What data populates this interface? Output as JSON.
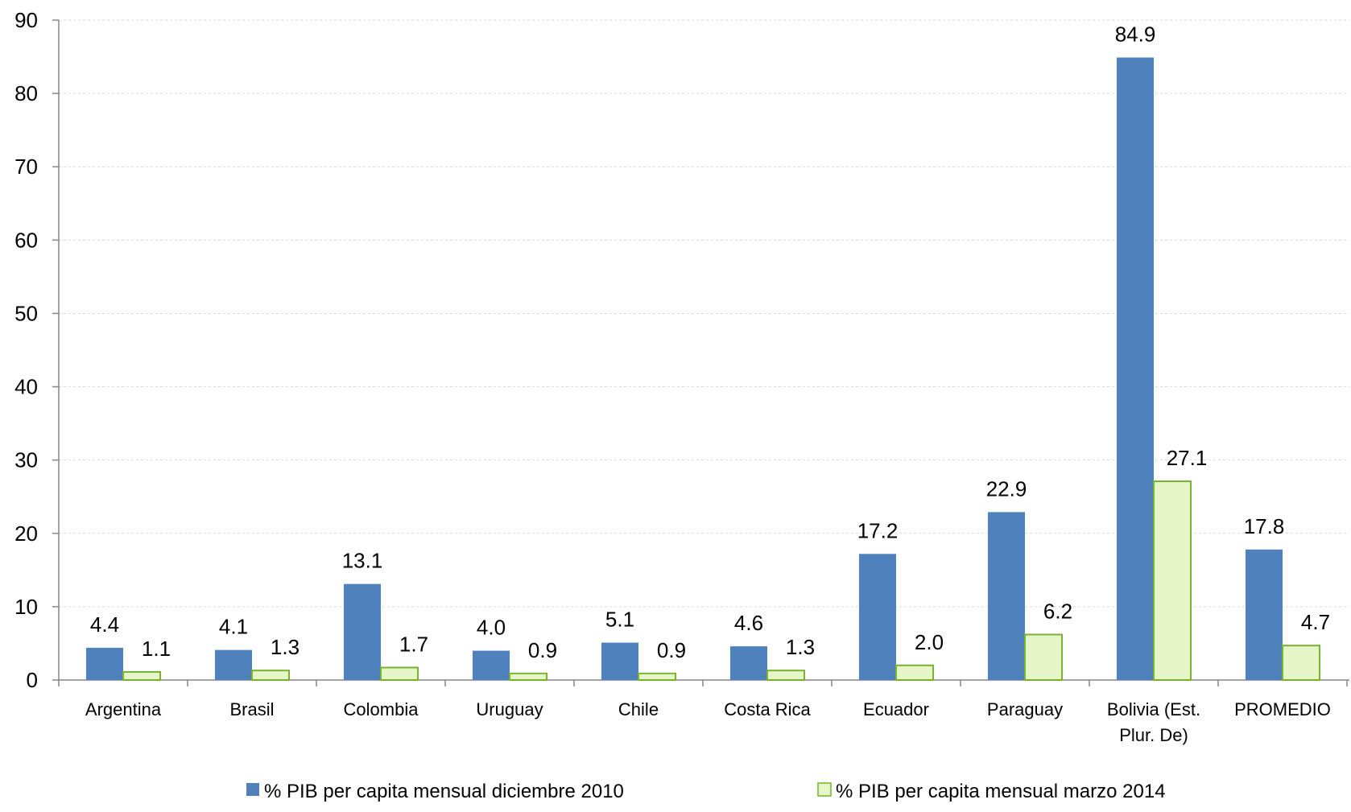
{
  "chart_data": {
    "type": "bar",
    "categories": [
      "Argentina",
      "Brasil",
      "Colombia",
      "Uruguay",
      "Chile",
      "Costa Rica",
      "Ecuador",
      "Paraguay",
      "Bolivia (Est. Plur. De)",
      "PROMEDIO"
    ],
    "category_lines": [
      [
        "Argentina"
      ],
      [
        "Brasil"
      ],
      [
        "Colombia"
      ],
      [
        "Uruguay"
      ],
      [
        "Chile"
      ],
      [
        "Costa Rica"
      ],
      [
        "Ecuador"
      ],
      [
        "Paraguay"
      ],
      [
        "Bolivia (Est.",
        "Plur. De)"
      ],
      [
        "PROMEDIO"
      ]
    ],
    "series": [
      {
        "name": "% PIB per capita mensual diciembre 2010",
        "values": [
          4.4,
          4.1,
          13.1,
          4.0,
          5.1,
          4.6,
          17.2,
          22.9,
          84.9,
          17.8
        ],
        "labels": [
          "4.4",
          "4.1",
          "13.1",
          "4.0",
          "5.1",
          "4.6",
          "17.2",
          "22.9",
          "84.9",
          "17.8"
        ],
        "color": "#4f81bd"
      },
      {
        "name": "% PIB per capita mensual marzo 2014",
        "values": [
          1.1,
          1.3,
          1.7,
          0.9,
          0.9,
          1.3,
          2.0,
          6.2,
          27.1,
          4.7
        ],
        "labels": [
          "1.1",
          "1.3",
          "1.7",
          "0.9",
          "0.9",
          "1.3",
          "2.0",
          "6.2",
          "27.1",
          "4.7"
        ],
        "color": "#e6f5c8",
        "stroke": "#77b32e"
      }
    ],
    "yticks": [
      "0",
      "10",
      "20",
      "30",
      "40",
      "50",
      "60",
      "70",
      "80",
      "90"
    ],
    "ylim": [
      0,
      90
    ],
    "grid": true,
    "legend_position": "bottom",
    "title": "",
    "xlabel": "",
    "ylabel": ""
  }
}
